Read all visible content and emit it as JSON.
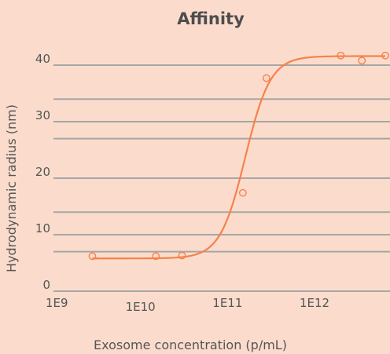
{
  "chart_data": {
    "type": "scatter",
    "title": "Affinity",
    "xlabel": "Exosome concentration (p/mL)",
    "ylabel": "Hydrodynamic radius (nm)",
    "x_scale": "log",
    "xlim": [
      1000000000.0,
      6500000000000.0
    ],
    "ylim": [
      0,
      43
    ],
    "x_ticks": [
      {
        "value": 1000000000.0,
        "label": "1E9",
        "row": "upper"
      },
      {
        "value": 10000000000.0,
        "label": "1E10",
        "row": "lower"
      },
      {
        "value": 100000000000.0,
        "label": "1E11",
        "row": "upper"
      },
      {
        "value": 1000000000000.0,
        "label": "1E12",
        "row": "upper"
      }
    ],
    "y_ticks": [
      {
        "value": 0,
        "label": "0"
      },
      {
        "value": 10,
        "label": "10"
      },
      {
        "value": 20,
        "label": "20"
      },
      {
        "value": 30,
        "label": "30"
      },
      {
        "value": 40,
        "label": "40"
      }
    ],
    "gridlines_y": [
      0,
      7,
      10,
      14,
      20,
      27,
      30,
      34,
      40
    ],
    "grid": true,
    "colors": {
      "background": "#fbdccc",
      "series": "#f7814b",
      "grid": "#a6a6a6",
      "text": "#555555"
    },
    "series": [
      {
        "values": [
          {
            "x": 2800000000.0,
            "y": 6.2
          },
          {
            "x": 15000000000.0,
            "y": 6.2
          },
          {
            "x": 30000000000.0,
            "y": 6.3
          },
          {
            "x": 150000000000.0,
            "y": 17.4
          },
          {
            "x": 280000000000.0,
            "y": 37.7
          },
          {
            "x": 2000000000000.0,
            "y": 41.7
          },
          {
            "x": 3500000000000.0,
            "y": 40.8
          },
          {
            "x": 6500000000000.0,
            "y": 41.7
          }
        ],
        "fit": {
          "model": "four-parameter logistic",
          "bottom": 5.8,
          "top": 41.6,
          "ec50": 160000000000.0,
          "hill": 3.0
        }
      }
    ]
  }
}
